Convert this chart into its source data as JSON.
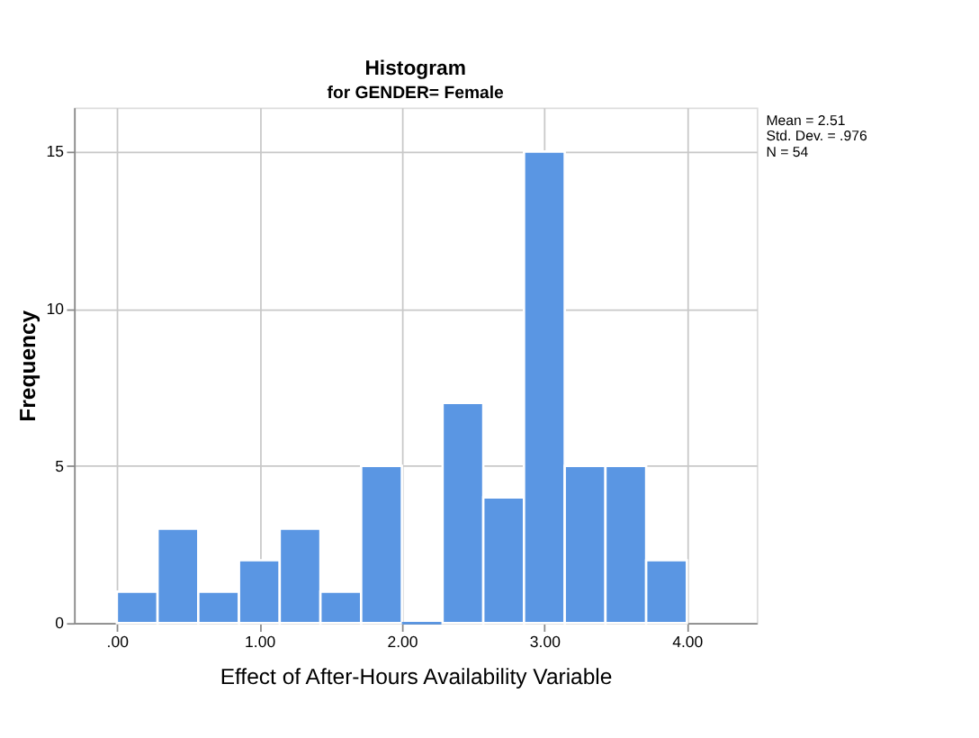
{
  "chart_data": {
    "type": "histogram",
    "title": "Histogram",
    "subtitle": "for GENDER= Female",
    "xlabel": "Effect of After-Hours Availability Variable",
    "ylabel": "Frequency",
    "bins": [
      0,
      0.2857,
      0.5714,
      0.8571,
      1.1429,
      1.4286,
      1.7143,
      2.0,
      2.2857,
      2.5714,
      2.8571,
      3.1429,
      3.4286,
      3.7143,
      4.0
    ],
    "values": [
      1,
      3,
      1,
      2,
      3,
      1,
      5,
      0,
      7,
      4,
      15,
      5,
      5,
      2
    ],
    "color": "#5a96e3",
    "xlim": [
      -0.3,
      4.49
    ],
    "xticks": [
      {
        "value": 0,
        "label": ".00"
      },
      {
        "value": 1,
        "label": "1.00"
      },
      {
        "value": 2,
        "label": "2.00"
      },
      {
        "value": 3,
        "label": "3.00"
      },
      {
        "value": 4,
        "label": "4.00"
      }
    ],
    "ylim": [
      0,
      16.4
    ],
    "yticks": [
      0,
      5,
      10,
      15
    ],
    "grid": true,
    "annotations": [
      "Mean = 2.51",
      "Std. Dev. = .976",
      "N = 54"
    ]
  }
}
